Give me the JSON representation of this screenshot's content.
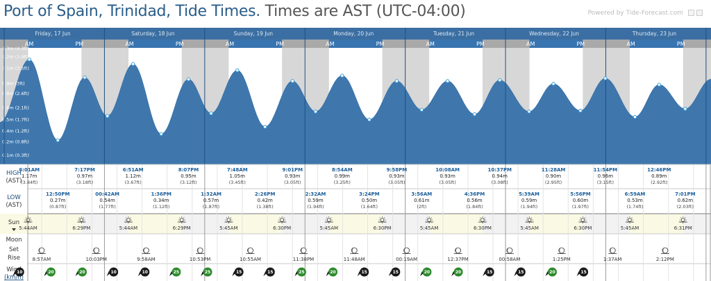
{
  "header": {
    "title": "Port of Spain, Trinidad, Tide Times.",
    "timezone": "Times are AST (UTC-04:00)",
    "powered_by": "Powered by Tide-Forecast.com"
  },
  "chart_data": {
    "type": "area",
    "xlabel": "",
    "ylabel": "",
    "ylim": [
      0,
      1.3
    ],
    "y_ticks": [
      "0.1m (0.3ft)",
      "0.2m (0.8ft)",
      "0.4m (1.2ft)",
      "0.5m (1.7ft)",
      "0.6m (2.1ft)",
      "0.8m (2.6ft)",
      "0.9m (3ft)",
      "1.1m (3.5ft)",
      "1.2m (3.9ft)"
    ],
    "y_tick_values": [
      0.1,
      0.25,
      0.37,
      0.5,
      0.63,
      0.79,
      0.9,
      1.07,
      1.2
    ],
    "top_tick_label": "1.3m (4.3ft)",
    "days": [
      "Friday, 17 Jun",
      "Saturday, 18 Jun",
      "Sunday, 19 Jun",
      "Monday, 20 Jun",
      "Tuesday, 21 Jun",
      "Wednesday, 22 Jun",
      "Thursday, 23 Jun"
    ],
    "am_label": "AM",
    "pm_label": "PM",
    "view_start_hours": -1.0,
    "tides": [
      {
        "t": -1.0,
        "h": 0.47
      },
      {
        "t": 6.0167,
        "h": 1.17,
        "kind": "high",
        "time": "6:01AM",
        "m": "1.17m",
        "ft": "(3.84ft)"
      },
      {
        "t": 12.8333,
        "h": 0.27,
        "kind": "low",
        "time": "12:50PM",
        "m": "0.27m",
        "ft": "(0.87ft)"
      },
      {
        "t": 19.2833,
        "h": 0.97,
        "kind": "high",
        "time": "7:17PM",
        "m": "0.97m",
        "ft": "(3.18ft)"
      },
      {
        "t": 24.7,
        "h": 0.54,
        "kind": "low",
        "time": "00:42AM",
        "m": "0.54m",
        "ft": "(1.77ft)"
      },
      {
        "t": 30.85,
        "h": 1.12,
        "kind": "high",
        "time": "6:51AM",
        "m": "1.12m",
        "ft": "(3.67ft)"
      },
      {
        "t": 37.6,
        "h": 0.34,
        "kind": "low",
        "time": "1:36PM",
        "m": "0.34m",
        "ft": "(1.12ft)"
      },
      {
        "t": 44.1167,
        "h": 0.95,
        "kind": "high",
        "time": "8:07PM",
        "m": "0.95m",
        "ft": "(3.12ft)"
      },
      {
        "t": 49.5333,
        "h": 0.57,
        "kind": "low",
        "time": "1:32AM",
        "m": "0.57m",
        "ft": "(1.87ft)"
      },
      {
        "t": 55.8,
        "h": 1.05,
        "kind": "high",
        "time": "7:48AM",
        "m": "1.05m",
        "ft": "(3.45ft)"
      },
      {
        "t": 62.4333,
        "h": 0.42,
        "kind": "low",
        "time": "2:26PM",
        "m": "0.42m",
        "ft": "(1.38ft)"
      },
      {
        "t": 69.0167,
        "h": 0.93,
        "kind": "high",
        "time": "9:01PM",
        "m": "0.93m",
        "ft": "(3.05ft)"
      },
      {
        "t": 74.5333,
        "h": 0.59,
        "kind": "low",
        "time": "2:32AM",
        "m": "0.59m",
        "ft": "(1.94ft)"
      },
      {
        "t": 80.9,
        "h": 0.99,
        "kind": "high",
        "time": "8:54AM",
        "m": "0.99m",
        "ft": "(3.25ft)"
      },
      {
        "t": 87.4,
        "h": 0.5,
        "kind": "low",
        "time": "3:24PM",
        "m": "0.50m",
        "ft": "(1.64ft)"
      },
      {
        "t": 93.9667,
        "h": 0.93,
        "kind": "high",
        "time": "9:58PM",
        "m": "0.93m",
        "ft": "(3.05ft)"
      },
      {
        "t": 99.9333,
        "h": 0.61,
        "kind": "low",
        "time": "3:56AM",
        "m": "0.61m",
        "ft": "(2ft)"
      },
      {
        "t": 106.1333,
        "h": 0.93,
        "kind": "high",
        "time": "10:08AM",
        "m": "0.93m",
        "ft": "(3.05ft)"
      },
      {
        "t": 112.6,
        "h": 0.56,
        "kind": "low",
        "time": "4:36PM",
        "m": "0.56m",
        "ft": "(1.84ft)"
      },
      {
        "t": 118.6167,
        "h": 0.94,
        "kind": "high",
        "time": "10:37PM",
        "m": "0.94m",
        "ft": "(3.08ft)"
      },
      {
        "t": 125.65,
        "h": 0.59,
        "kind": "low",
        "time": "5:39AM",
        "m": "0.59m",
        "ft": "(1.94ft)"
      },
      {
        "t": 131.4667,
        "h": 0.9,
        "kind": "high",
        "time": "11:28AM",
        "m": "0.90m",
        "ft": "(2.95ft)"
      },
      {
        "t": 137.9333,
        "h": 0.6,
        "kind": "low",
        "time": "5:56PM",
        "m": "0.60m",
        "ft": "(1.97ft)"
      },
      {
        "t": 143.9,
        "h": 0.96,
        "kind": "high",
        "time": "11:54PM",
        "m": "0.96m",
        "ft": "(3.15ft)"
      },
      {
        "t": 150.9833,
        "h": 0.53,
        "kind": "low",
        "time": "6:59AM",
        "m": "0.53m",
        "ft": "(1.74ft)"
      },
      {
        "t": 156.7667,
        "h": 0.89,
        "kind": "high",
        "time": "12:46PM",
        "m": "0.89m",
        "ft": "(2.92ft)"
      },
      {
        "t": 163.0167,
        "h": 0.62,
        "kind": "low",
        "time": "7:01PM",
        "m": "0.62m",
        "ft": "(2.03ft)"
      },
      {
        "t": 169.2,
        "h": 0.95
      }
    ]
  },
  "rows": {
    "high_label": "HIGH",
    "low_label": "LOW",
    "ast_label": "(AST)",
    "sun_label": "Sun",
    "moon_label": "Moon",
    "set_label": "Set",
    "rise_label": "Rise",
    "wind_label": "Wind",
    "wind_unit": "(km/h)"
  },
  "sun": [
    {
      "rise": "5:44AM",
      "set": "6:29PM"
    },
    {
      "rise": "5:44AM",
      "set": "6:29PM"
    },
    {
      "rise": "5:45AM",
      "set": "6:30PM"
    },
    {
      "rise": "5:45AM",
      "set": "6:30PM"
    },
    {
      "rise": "5:45AM",
      "set": "6:30PM"
    },
    {
      "rise": "5:45AM",
      "set": "6:30PM"
    },
    {
      "rise": "5:45AM",
      "set": "6:31PM"
    }
  ],
  "moon": [
    {
      "kind": "set",
      "time": "8:57AM",
      "t": 8.95
    },
    {
      "kind": "rise",
      "time": "10:03PM",
      "t": 22.05
    },
    {
      "kind": "set",
      "time": "9:58AM",
      "t": 33.97
    },
    {
      "kind": "rise",
      "time": "10:53PM",
      "t": 46.88
    },
    {
      "kind": "set",
      "time": "10:55AM",
      "t": 58.92
    },
    {
      "kind": "rise",
      "time": "11:38PM",
      "t": 71.63
    },
    {
      "kind": "set",
      "time": "11:48AM",
      "t": 83.8
    },
    {
      "kind": "rise",
      "time": "00:19AM",
      "t": 96.32
    },
    {
      "kind": "set",
      "time": "12:37PM",
      "t": 108.62
    },
    {
      "kind": "rise",
      "time": "00:58AM",
      "t": 120.97
    },
    {
      "kind": "set",
      "time": "1:25PM",
      "t": 133.42
    },
    {
      "kind": "rise",
      "time": "1:37AM",
      "t": 145.62
    },
    {
      "kind": "set",
      "time": "2:12PM",
      "t": 158.2
    }
  ],
  "wind": [
    "10",
    "20",
    "20",
    "10",
    "10",
    "25",
    "25",
    "15",
    "15",
    "25",
    "20",
    "15",
    "15",
    "20",
    "20",
    "15",
    "15",
    "20",
    "15",
    "15",
    "15",
    "15",
    "20"
  ],
  "colors": {
    "water": "#3f77ad",
    "night": "#d7d7d7",
    "night_head": "#a9a9a9",
    "day_head": "#3874b0",
    "top_band": "#3b6fa3",
    "sun_row": "#fafae4",
    "wind_dark": "#1a1a1a",
    "wind_green": "#2e8b2e"
  }
}
